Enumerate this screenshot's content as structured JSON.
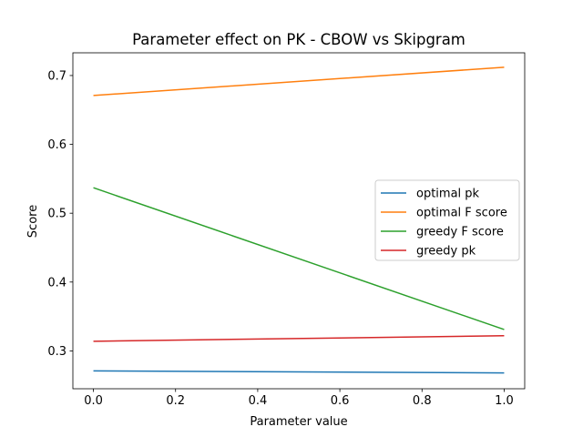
{
  "chart_data": {
    "type": "line",
    "title": "Parameter effect on PK - CBOW vs Skipgram",
    "xlabel": "Parameter value",
    "ylabel": "Score",
    "xlim": [
      -0.05,
      1.05
    ],
    "ylim": [
      0.245,
      0.733
    ],
    "xticks": [
      0.0,
      0.2,
      0.4,
      0.6,
      0.8,
      1.0
    ],
    "xtick_labels": [
      "0.0",
      "0.2",
      "0.4",
      "0.6",
      "0.8",
      "1.0"
    ],
    "yticks": [
      0.3,
      0.4,
      0.5,
      0.6,
      0.7
    ],
    "ytick_labels": [
      "0.3",
      "0.4",
      "0.5",
      "0.6",
      "0.7"
    ],
    "grid": false,
    "legend_position": "center-right",
    "series": [
      {
        "name": "optimal pk",
        "color": "#1f77b4",
        "x": [
          0.0,
          1.0
        ],
        "y": [
          0.271,
          0.268
        ]
      },
      {
        "name": "optimal F score",
        "color": "#ff7f0e",
        "x": [
          0.0,
          1.0
        ],
        "y": [
          0.671,
          0.712
        ]
      },
      {
        "name": "greedy F score",
        "color": "#2ca02c",
        "x": [
          0.0,
          1.0
        ],
        "y": [
          0.537,
          0.331
        ]
      },
      {
        "name": "greedy pk",
        "color": "#d62728",
        "x": [
          0.0,
          1.0
        ],
        "y": [
          0.314,
          0.322
        ]
      }
    ]
  }
}
